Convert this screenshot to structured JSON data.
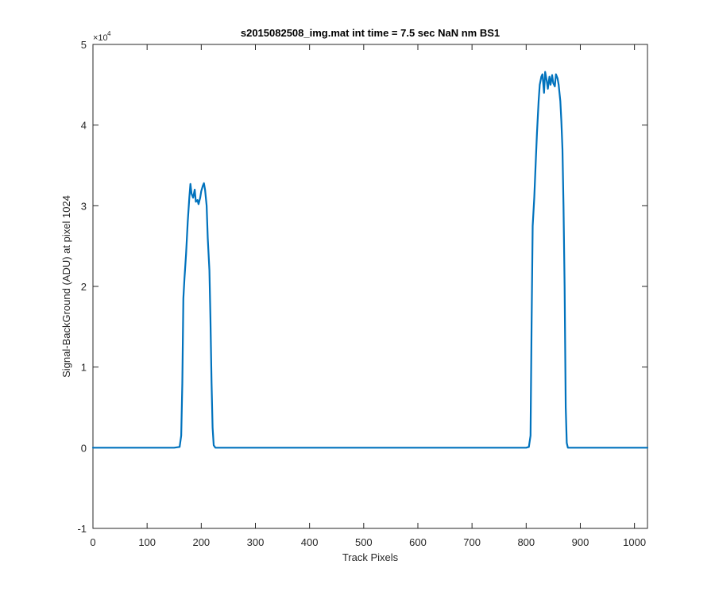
{
  "chart_data": {
    "type": "line",
    "title": "s2015082508_img.mat int time = 7.5 sec  NaN nm BS1",
    "xlabel": "Track Pixels",
    "ylabel": "Signal-BackGround (ADU) at pixel 1024",
    "y_exponent_label": "×10",
    "y_exponent_power": "4",
    "xlim": [
      0,
      1024
    ],
    "ylim": [
      -10000,
      50000
    ],
    "x_ticks": [
      0,
      100,
      200,
      300,
      400,
      500,
      600,
      700,
      800,
      900,
      1000
    ],
    "x_tick_labels": [
      "0",
      "100",
      "200",
      "300",
      "400",
      "500",
      "600",
      "700",
      "800",
      "900",
      "1000"
    ],
    "y_ticks": [
      -10000,
      0,
      10000,
      20000,
      30000,
      40000,
      50000
    ],
    "y_tick_labels": [
      "-1",
      "0",
      "1",
      "2",
      "3",
      "4",
      "5"
    ],
    "grid": false,
    "line_color": "#0072bd",
    "series": [
      {
        "x": [
          0,
          150,
          160,
          163,
          165,
          167,
          169,
          172,
          175,
          178,
          180,
          182,
          185,
          188,
          190,
          193,
          195,
          198,
          200,
          203,
          205,
          207,
          210,
          212,
          215,
          217,
          219,
          221,
          223,
          226,
          228,
          230,
          240,
          400,
          600,
          800,
          805,
          808,
          810,
          812,
          815,
          818,
          820,
          823,
          825,
          828,
          830,
          833,
          835,
          838,
          840,
          843,
          845,
          848,
          850,
          853,
          855,
          858,
          860,
          863,
          865,
          867,
          869,
          871,
          873,
          875,
          877,
          880,
          890,
          1000,
          1024
        ],
        "y": [
          0,
          0,
          100,
          1500,
          8000,
          18500,
          21000,
          24000,
          28000,
          31000,
          32700,
          31500,
          31000,
          32000,
          30500,
          30700,
          30200,
          31000,
          31800,
          32500,
          32800,
          32000,
          30000,
          26000,
          22000,
          16000,
          8000,
          2500,
          300,
          0,
          0,
          0,
          0,
          0,
          0,
          0,
          100,
          1500,
          15000,
          27500,
          31000,
          36000,
          39000,
          43000,
          45000,
          46000,
          46300,
          44000,
          46600,
          45500,
          44500,
          46000,
          45000,
          46200,
          45200,
          44800,
          46300,
          45800,
          45000,
          43000,
          40500,
          37000,
          30000,
          20000,
          5000,
          600,
          0,
          0,
          0,
          0,
          0
        ]
      }
    ]
  }
}
